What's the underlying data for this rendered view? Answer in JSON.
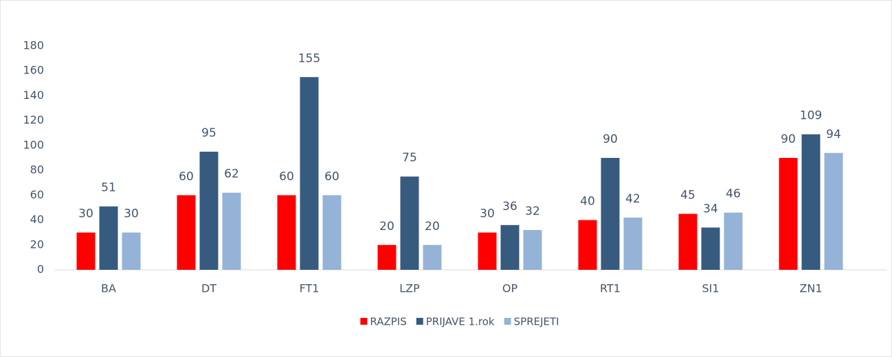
{
  "chart_data": {
    "type": "bar",
    "categories": [
      "BA",
      "DT",
      "FT1",
      "LZP",
      "OP",
      "RT1",
      "SI1",
      "ZN1"
    ],
    "series": [
      {
        "name": "RAZPIS",
        "color": "#ff0000",
        "values": [
          30,
          60,
          60,
          20,
          30,
          40,
          45,
          90
        ]
      },
      {
        "name": "PRIJAVE 1.rok",
        "color": "#375a7f",
        "values": [
          51,
          95,
          155,
          75,
          36,
          90,
          34,
          109
        ]
      },
      {
        "name": "SPREJETI",
        "color": "#95b3d7",
        "values": [
          30,
          62,
          60,
          20,
          32,
          42,
          46,
          94
        ]
      }
    ],
    "ylim": [
      0,
      180
    ],
    "yticks": [
      0,
      20,
      40,
      60,
      80,
      100,
      120,
      140,
      160,
      180
    ],
    "grid": false,
    "legend": "bottom"
  }
}
